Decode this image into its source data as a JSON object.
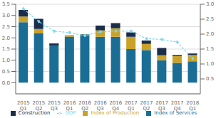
{
  "chart_data": {
    "type": "bar",
    "stacked": true,
    "grid": true,
    "legend": "bottom",
    "categories": [
      "2015 Q1",
      "2015 Q2",
      "2015 Q3",
      "2016 Q1",
      "2016 Q2",
      "2016 Q3",
      "2016 Q4",
      "2017 Q1",
      "2017 Q2",
      "2017 Q3",
      "2017 Q4",
      "2018 Q1"
    ],
    "series": [
      {
        "name": "Index of Services",
        "color": "#1a6e96",
        "values": [
          2.7,
          2.2,
          1.75,
          2.05,
          2.1,
          2.05,
          2.05,
          1.5,
          1.45,
          1.0,
          0.88,
          0.95
        ]
      },
      {
        "name": "Index of Production",
        "color": "#c9a227",
        "values": [
          0.25,
          0.2,
          0.0,
          0.03,
          0.05,
          0.28,
          0.38,
          0.55,
          0.28,
          0.22,
          0.3,
          0.28
        ]
      },
      {
        "name": "Construction",
        "color": "#1a2d4a",
        "values": [
          0.3,
          0.45,
          -0.08,
          0.02,
          -0.02,
          0.22,
          0.23,
          0.2,
          0.15,
          0.33,
          0.05,
          0.07
        ]
      },
      {
        "name": "GDP",
        "type": "line",
        "axis": "y2",
        "color": "#7dd8f0",
        "line_style": "dashed",
        "marker": "circle",
        "values": [
          2.85,
          2.42,
          2.1,
          2.05,
          1.95,
          2.08,
          2.1,
          2.1,
          1.85,
          1.82,
          1.73,
          1.18
        ]
      }
    ],
    "ylim": [
      -0.5,
      3.5
    ],
    "yticks": [
      {
        "value": 0,
        "label": "0.0"
      },
      0.5,
      {
        "value": 1,
        "label": "1.0"
      },
      1.5,
      {
        "value": 2,
        "label": "2.0"
      },
      2.5,
      {
        "value": 3,
        "label": "3.0"
      },
      3.5
    ],
    "y2lim": [
      0.0,
      3.0
    ],
    "y2ticks": [
      0.5,
      {
        "value": 1,
        "label": "1.0"
      },
      1.5,
      {
        "value": 2,
        "label": "2.0"
      },
      2.5,
      {
        "value": 3,
        "label": "3.0"
      }
    ]
  }
}
